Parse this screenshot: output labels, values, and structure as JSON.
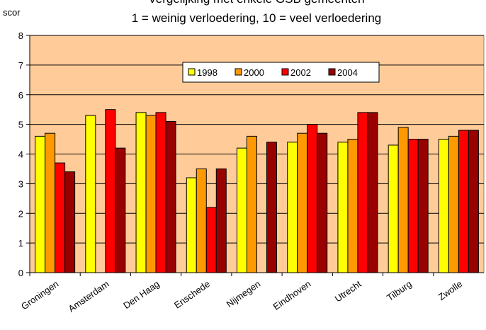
{
  "chart_data": {
    "type": "bar",
    "title": "Vergelijking met enkele GSB gemeenten",
    "subtitle": "1 = weinig verloedering, 10 = veel verloedering",
    "y_label": "scor",
    "categories": [
      "Groningen",
      "Amsterdam",
      "Den Haag",
      "Enschede",
      "Nijmegen",
      "Eindhoven",
      "Utrecht",
      "Tilburg",
      "Zwolle"
    ],
    "series": [
      {
        "name": "1998",
        "color": "#ffff00",
        "values": [
          4.6,
          5.3,
          5.4,
          3.2,
          4.2,
          4.4,
          4.4,
          4.3,
          4.5
        ]
      },
      {
        "name": "2000",
        "color": "#ff9900",
        "values": [
          4.7,
          null,
          5.3,
          3.5,
          4.6,
          4.7,
          4.5,
          4.9,
          4.6
        ]
      },
      {
        "name": "2002",
        "color": "#ff0000",
        "values": [
          3.7,
          5.5,
          5.4,
          2.2,
          null,
          5.0,
          5.4,
          4.5,
          4.8
        ]
      },
      {
        "name": "2004",
        "color": "#990000",
        "values": [
          3.4,
          4.2,
          5.1,
          3.5,
          4.4,
          4.7,
          5.4,
          4.5,
          4.8
        ]
      }
    ],
    "ylim": [
      0,
      8
    ],
    "yticks": [
      0,
      1,
      2,
      3,
      4,
      5,
      6,
      7,
      8
    ],
    "grid": true,
    "plot_background": "#ffcc99"
  }
}
